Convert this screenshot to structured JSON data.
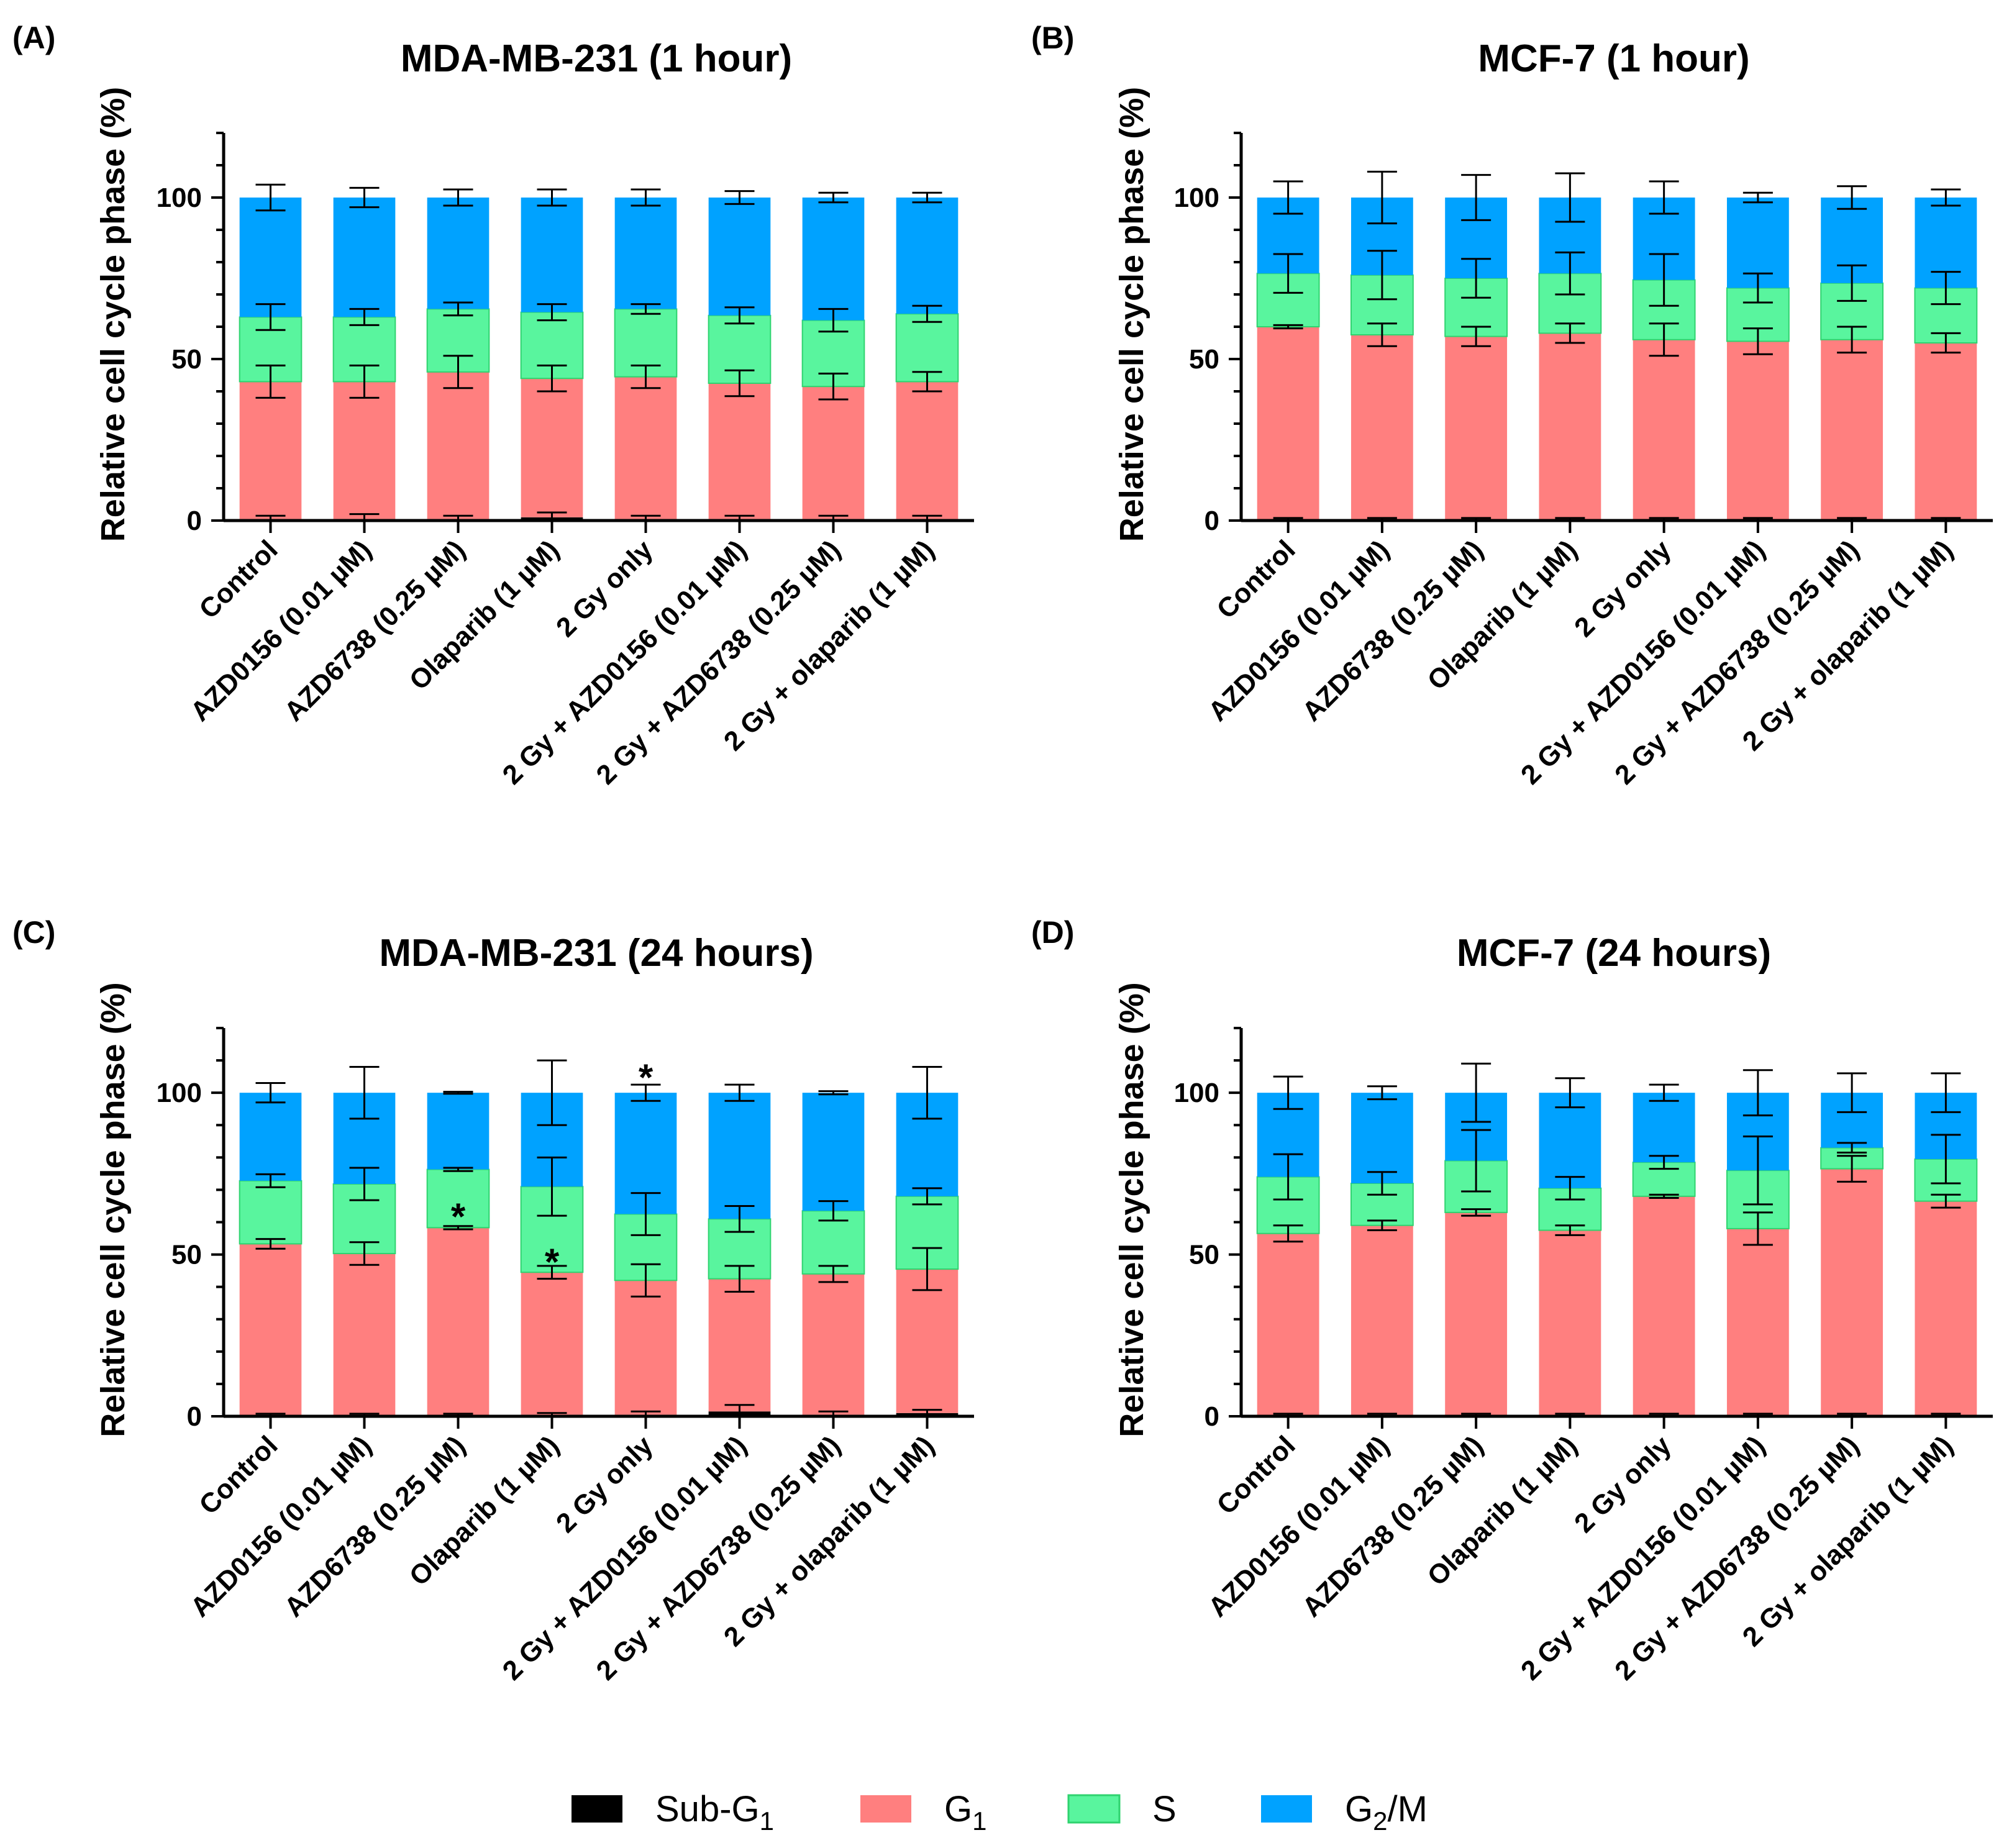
{
  "figure": {
    "legend": [
      {
        "name": "Sub-G",
        "sub": "1",
        "color": "#000000"
      },
      {
        "name": "G",
        "sub": "1",
        "color": "#ff7f7f"
      },
      {
        "name": "S",
        "sub": "",
        "color": "#59f59e"
      },
      {
        "name": "G",
        "sub": "2",
        "suffix": "/M",
        "color": "#00a2ff"
      }
    ]
  },
  "chart_data": [
    {
      "panel": "(A)",
      "type": "bar",
      "stacked": true,
      "title": "MDA-MB-231 (1 hour)",
      "ylabel": "Relative cell cycle phase (%)",
      "ylim": [
        0,
        120
      ],
      "yticks": [
        0,
        50,
        100
      ],
      "categories": [
        "Control",
        "AZD0156 (0.01 µM)",
        "AZD6738 (0.25 µM)",
        "Olaparib (1 µM)",
        "2 Gy only",
        "2 Gy + AZD0156 (0.01 µM)",
        "2 Gy + AZD6738 (0.25 µM)",
        "2 Gy + olaparib (1 µM)"
      ],
      "series": [
        {
          "name": "Sub-G1",
          "values": [
            0.5,
            0.5,
            0.5,
            1.0,
            0.5,
            0.5,
            0.5,
            0.5
          ],
          "err": [
            1.0,
            1.5,
            1.0,
            1.5,
            1.0,
            1.0,
            1.0,
            1.0
          ]
        },
        {
          "name": "G1",
          "values": [
            42.5,
            42.5,
            45.5,
            43,
            44,
            42,
            41,
            42.5
          ],
          "err": [
            5,
            5,
            5,
            4,
            3.5,
            4,
            4,
            3
          ]
        },
        {
          "name": "S",
          "values": [
            20,
            20,
            19.5,
            20.5,
            21,
            21,
            20.5,
            21
          ],
          "err": [
            4,
            2.5,
            2,
            2.5,
            1.5,
            2.5,
            3.5,
            2.5
          ]
        },
        {
          "name": "G2/M",
          "values": [
            37,
            37,
            34.5,
            35.5,
            34.5,
            36.5,
            38,
            36
          ],
          "err": [
            4,
            3,
            2.5,
            2.5,
            2.5,
            2,
            1.5,
            1.5
          ]
        }
      ],
      "annotations": []
    },
    {
      "panel": "(B)",
      "type": "bar",
      "stacked": true,
      "title": "MCF-7 (1 hour)",
      "ylabel": "Relative cell cycle phase (%)",
      "ylim": [
        0,
        120
      ],
      "yticks": [
        0,
        50,
        100
      ],
      "categories": [
        "Control",
        "AZD0156 (0.01 µM)",
        "AZD6738 (0.25 µM)",
        "Olaparib (1 µM)",
        "2 Gy only",
        "2 Gy + AZD0156 (0.01 µM)",
        "2 Gy + AZD6738 (0.25 µM)",
        "2 Gy + olaparib (1 µM)"
      ],
      "series": [
        {
          "name": "Sub-G1",
          "values": [
            0.3,
            0.3,
            0.3,
            0.3,
            0.3,
            0.3,
            0.3,
            0.3
          ],
          "err": [
            0.5,
            0.5,
            0.5,
            0.5,
            0.5,
            0.5,
            0.5,
            0.5
          ]
        },
        {
          "name": "G1",
          "values": [
            59.7,
            57.2,
            56.7,
            57.7,
            55.7,
            55.2,
            55.7,
            54.7
          ],
          "err": [
            0.5,
            3.5,
            3,
            3,
            5,
            4,
            4,
            3
          ]
        },
        {
          "name": "S",
          "values": [
            16.5,
            18.5,
            18,
            18.5,
            18.5,
            16.5,
            17.5,
            17
          ],
          "err": [
            6,
            7.5,
            6,
            6.5,
            8,
            4.5,
            5.5,
            5
          ]
        },
        {
          "name": "G2/M",
          "values": [
            23.5,
            24,
            25,
            23.5,
            25.5,
            28,
            26.5,
            28
          ],
          "err": [
            5,
            8,
            7,
            7.5,
            5,
            1.5,
            3.5,
            2.5
          ]
        }
      ],
      "annotations": []
    },
    {
      "panel": "(C)",
      "type": "bar",
      "stacked": true,
      "title": "MDA-MB-231 (24 hours)",
      "ylabel": "Relative cell cycle phase (%)",
      "ylim": [
        0,
        120
      ],
      "yticks": [
        0,
        50,
        100
      ],
      "categories": [
        "Control",
        "AZD0156 (0.01 µM)",
        "AZD6738 (0.25 µM)",
        "Olaparib (1 µM)",
        "2 Gy only",
        "2 Gy + AZD0156 (0.01 µM)",
        "2 Gy + AZD6738 (0.25 µM)",
        "2 Gy + olaparib (1 µM)"
      ],
      "series": [
        {
          "name": "Sub-G1",
          "values": [
            0.3,
            0.3,
            0.3,
            0.5,
            0.5,
            1.5,
            0.5,
            1.0
          ],
          "err": [
            0.5,
            0.5,
            0.5,
            0.5,
            1.0,
            2.0,
            1.0,
            1.0
          ]
        },
        {
          "name": "G1",
          "values": [
            53,
            50,
            58,
            44,
            41.5,
            41,
            43.5,
            44.5
          ],
          "err": [
            1.5,
            3.5,
            0.5,
            2,
            5,
            4,
            2.5,
            6.5
          ]
        },
        {
          "name": "S",
          "values": [
            19.5,
            21.5,
            18,
            26.5,
            20.5,
            18.5,
            19.5,
            22.5
          ],
          "err": [
            2,
            5,
            0.5,
            9,
            6.5,
            4,
            3,
            2.5
          ]
        },
        {
          "name": "G2/M",
          "values": [
            27.2,
            28.2,
            23.7,
            29,
            37.5,
            39,
            36.5,
            32
          ],
          "err": [
            3,
            8,
            0.3,
            10,
            2.5,
            2.5,
            0.5,
            8
          ]
        }
      ],
      "annotations": [
        {
          "category_index": 2,
          "y": 62,
          "text": "*"
        },
        {
          "category_index": 3,
          "y": 48,
          "text": "*"
        },
        {
          "category_index": 4,
          "y": 105,
          "text": "*"
        }
      ]
    },
    {
      "panel": "(D)",
      "type": "bar",
      "stacked": true,
      "title": "MCF-7 (24 hours)",
      "ylabel": "Relative cell cycle phase (%)",
      "ylim": [
        0,
        120
      ],
      "yticks": [
        0,
        50,
        100
      ],
      "categories": [
        "Control",
        "AZD0156 (0.01 µM)",
        "AZD6738 (0.25 µM)",
        "Olaparib (1 µM)",
        "2 Gy only",
        "2 Gy + AZD0156 (0.01 µM)",
        "2 Gy + AZD6738 (0.25 µM)",
        "2 Gy + olaparib (1 µM)"
      ],
      "series": [
        {
          "name": "Sub-G1",
          "values": [
            0.3,
            0.3,
            0.3,
            0.3,
            0.3,
            0.3,
            0.3,
            0.3
          ],
          "err": [
            0.5,
            0.5,
            0.5,
            0.5,
            0.5,
            0.5,
            0.5,
            0.5
          ]
        },
        {
          "name": "G1",
          "values": [
            56.2,
            58.7,
            62.7,
            57.2,
            67.7,
            57.7,
            76.2,
            66.2
          ],
          "err": [
            2.5,
            1.5,
            1,
            1.5,
            0.5,
            5,
            4,
            2
          ]
        },
        {
          "name": "S",
          "values": [
            17.5,
            13,
            16,
            13,
            10.5,
            18,
            6.5,
            13
          ],
          "err": [
            7,
            3.5,
            9.5,
            3.5,
            2,
            10.5,
            1.5,
            7.5
          ]
        },
        {
          "name": "G2/M",
          "values": [
            26,
            28,
            21,
            29.5,
            21.5,
            24,
            17,
            20.5
          ],
          "err": [
            5,
            2,
            9,
            4.5,
            2.5,
            7,
            6,
            6
          ]
        }
      ],
      "annotations": []
    }
  ]
}
